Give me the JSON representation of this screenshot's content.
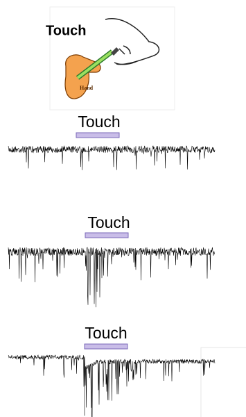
{
  "inset": {
    "title": "Touch",
    "hand_label": "Hand"
  },
  "traces": [
    {
      "label": "Touch"
    },
    {
      "label": "Touch"
    },
    {
      "label": "Touch"
    }
  ]
}
